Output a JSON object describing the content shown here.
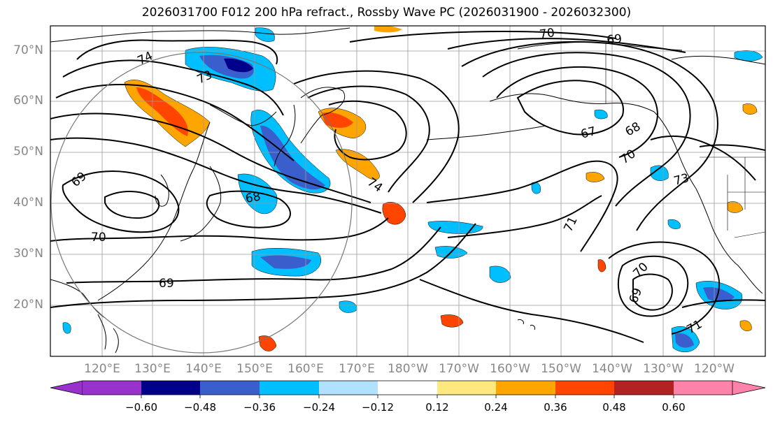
{
  "title": "2026031700 F012 200 hPa refract., Rossby Wave PC (2026031900 - 2026032300)",
  "lat_labels": [
    "70°N",
    "60°N",
    "50°N",
    "40°N",
    "30°N",
    "20°N"
  ],
  "lon_labels": [
    "120°E",
    "130°E",
    "140°E",
    "150°E",
    "160°E",
    "170°E",
    "180°W",
    "170°W",
    "160°W",
    "150°W",
    "140°W",
    "130°W",
    "120°W"
  ],
  "contour_labels": [
    "74",
    "73",
    "70",
    "69",
    "69",
    "68",
    "70",
    "69",
    "67",
    "68",
    "70",
    "73",
    "71",
    "70",
    "69",
    "71",
    "74"
  ],
  "colorbar": {
    "ticks": [
      "−0.60",
      "−0.48",
      "−0.36",
      "−0.24",
      "−0.12",
      "0.12",
      "0.24",
      "0.36",
      "0.48",
      "0.60"
    ],
    "colors": [
      "#9932cc",
      "#00008b",
      "#3a5fcd",
      "#00bfff",
      "#b0e2ff",
      "#ffffff",
      "#ffe97f",
      "#ffa500",
      "#ff4500",
      "#b22222",
      "#ff82ab"
    ]
  },
  "map_colors": {
    "negative_light": "#b0e2ff",
    "negative_mid": "#00bfff",
    "negative_strong": "#3a5fcd",
    "negative_extreme": "#00008b",
    "positive_light": "#ffe97f",
    "positive_mid": "#ffa500",
    "positive_strong": "#ff4500",
    "positive_extreme": "#b22222"
  }
}
